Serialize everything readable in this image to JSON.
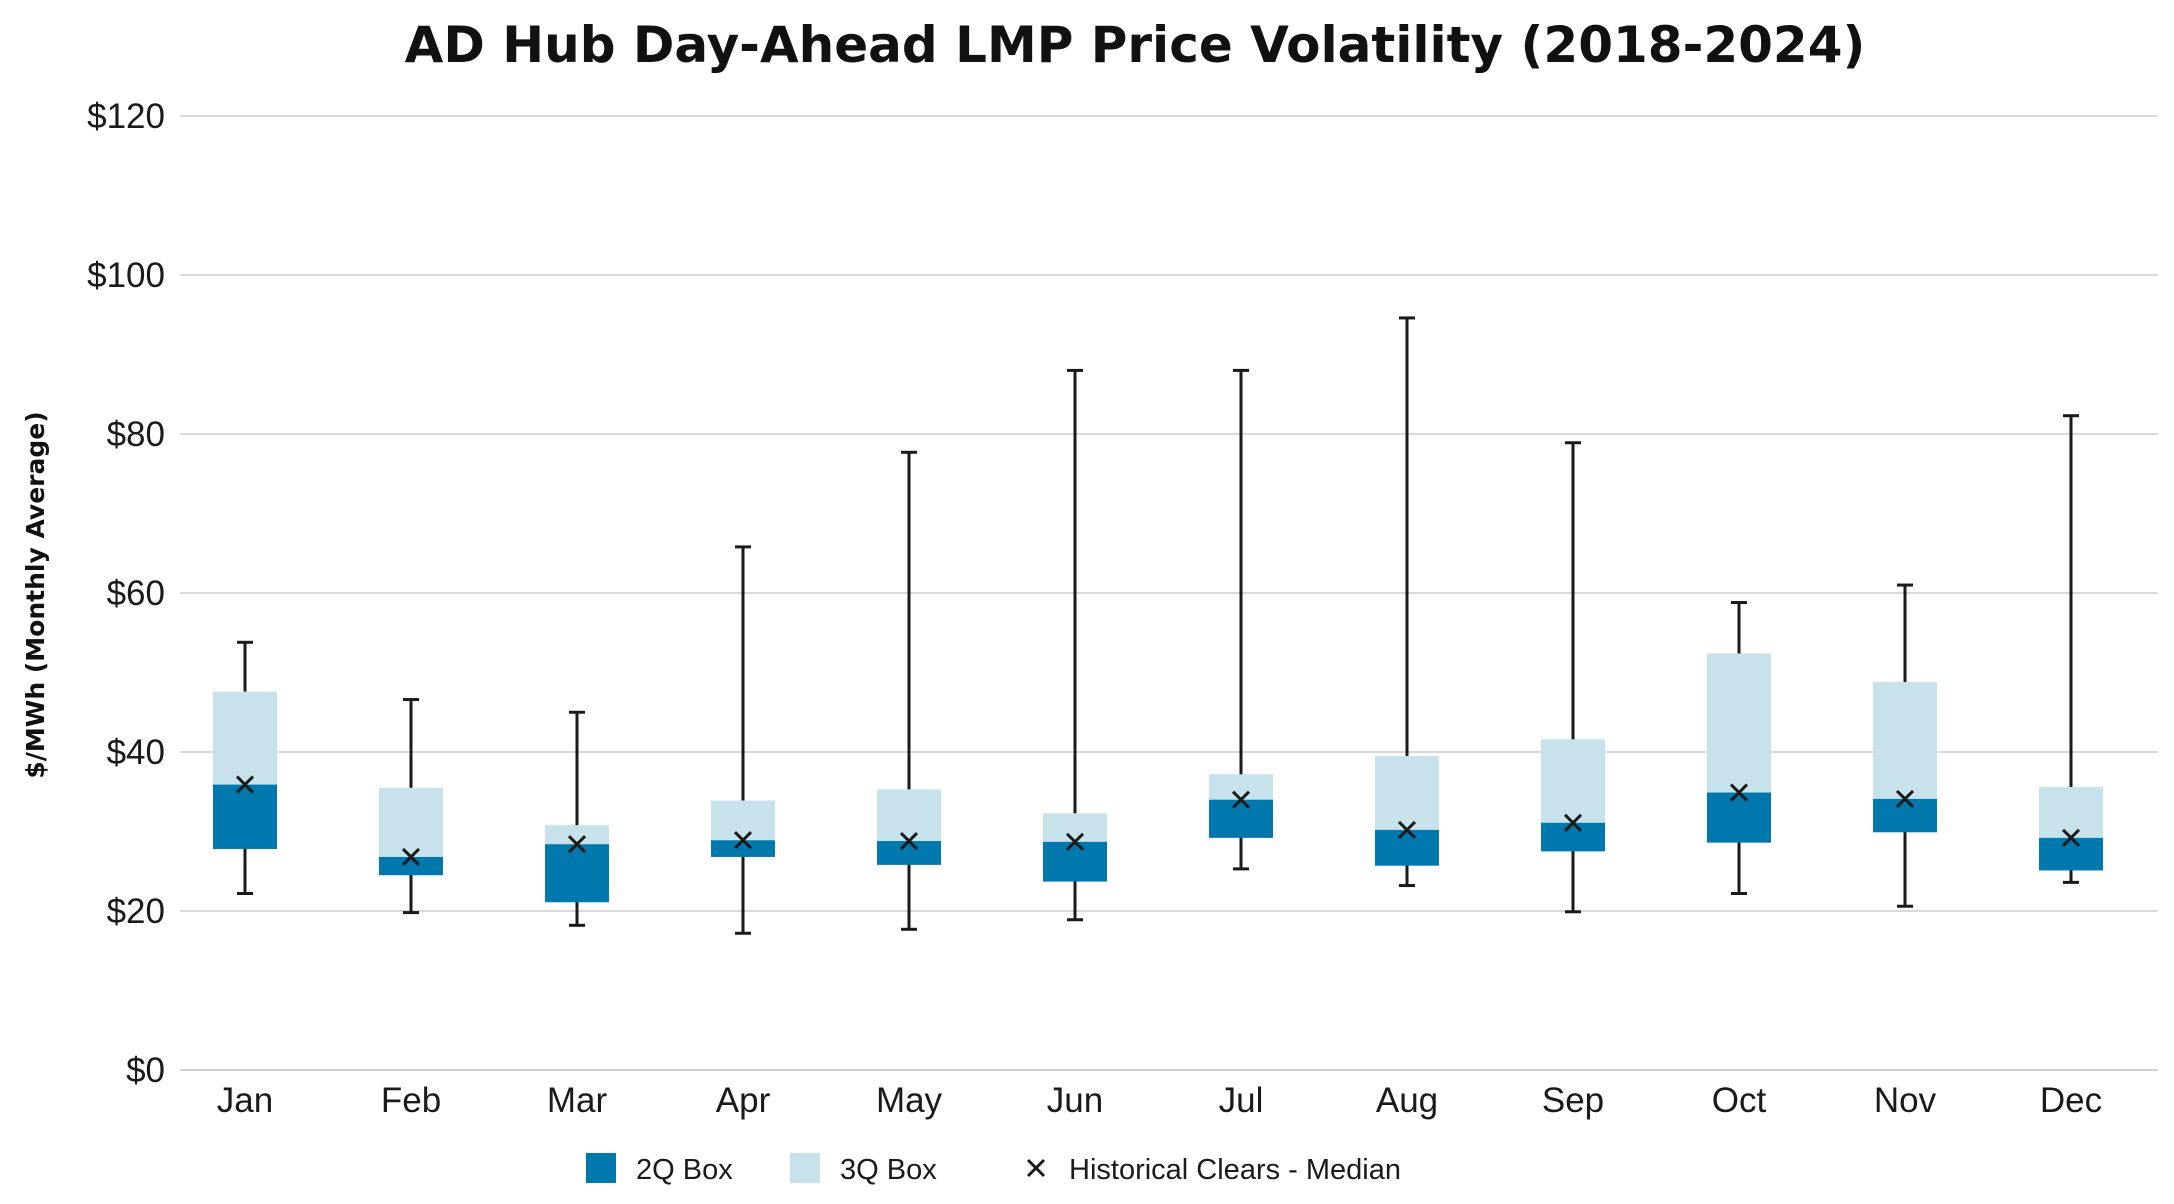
{
  "chart_data": {
    "type": "box",
    "title": "AD Hub Day-Ahead LMP Price Volatility (2018-2024)",
    "ylabel": "$/MWh (Monthly Average)",
    "xlabel": "",
    "ylim": [
      0,
      120
    ],
    "yticks": [
      0,
      20,
      40,
      60,
      80,
      100,
      120
    ],
    "ytick_labels": [
      "$0",
      "$20",
      "$40",
      "$60",
      "$80",
      "$100",
      "$120"
    ],
    "grid": true,
    "legend_position": "bottom-center",
    "categories": [
      "Jan",
      "Feb",
      "Mar",
      "Apr",
      "May",
      "Jun",
      "Jul",
      "Aug",
      "Sep",
      "Oct",
      "Nov",
      "Dec"
    ],
    "min": [
      22.2,
      19.8,
      18.2,
      17.2,
      17.7,
      18.9,
      25.3,
      23.2,
      19.9,
      22.2,
      20.6,
      23.6
    ],
    "q1": [
      27.8,
      24.5,
      21.1,
      26.8,
      25.8,
      23.7,
      29.2,
      25.7,
      27.5,
      28.6,
      29.9,
      25.1
    ],
    "median": [
      35.9,
      26.8,
      28.4,
      28.9,
      28.8,
      28.7,
      34.0,
      30.2,
      31.1,
      34.9,
      34.1,
      29.2
    ],
    "q3": [
      47.6,
      35.5,
      30.8,
      33.9,
      35.3,
      32.3,
      37.2,
      39.5,
      41.6,
      52.4,
      48.8,
      35.6
    ],
    "max": [
      53.8,
      46.6,
      45.0,
      65.8,
      77.7,
      88.0,
      88.0,
      94.6,
      78.9,
      58.8,
      61.0,
      82.3
    ],
    "colors": {
      "box_2q": "#0077ad",
      "box_3q": "#c8e2ec",
      "whisker": "#1a1a1a",
      "grid": "#c2c2c2",
      "median_marker": "#1a1a1a"
    },
    "legend": [
      {
        "name": "2Q Box",
        "color": "#0077ad",
        "marker": "square"
      },
      {
        "name": "3Q Box",
        "color": "#c8e2ec",
        "marker": "square"
      },
      {
        "name": "Historical Clears - Median",
        "color": "#1a1a1a",
        "marker": "x-icon"
      }
    ]
  }
}
